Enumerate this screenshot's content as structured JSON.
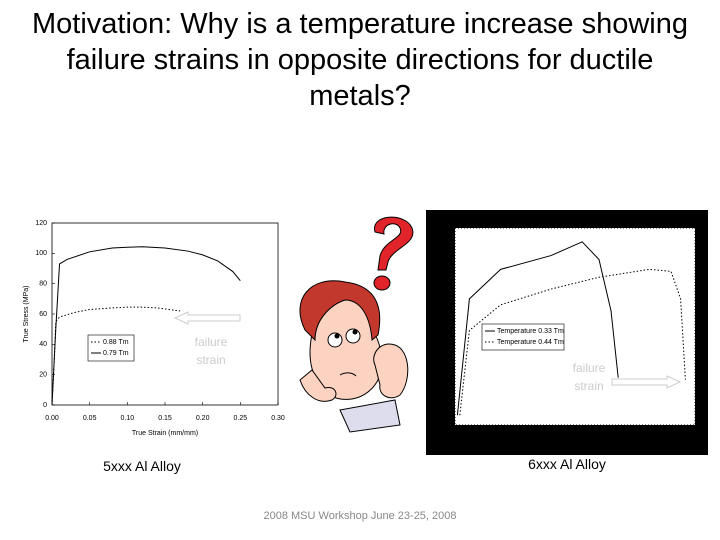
{
  "title": "Motivation: Why is a temperature increase showing failure strains in opposite directions for ductile metals?",
  "chart_data": [
    {
      "type": "line",
      "caption": "5xxx Al Alloy",
      "xlabel": "True Strain (mm/mm)",
      "ylabel": "True Stress (MPa)",
      "annotation": "failure strain",
      "xlim": [
        0,
        0.3
      ],
      "ylim": [
        0,
        120
      ],
      "xticks": [
        {
          "value": 0,
          "label": "0.00"
        },
        {
          "value": 0.05,
          "label": "0.05"
        },
        {
          "value": 0.1,
          "label": "0.10"
        },
        {
          "value": 0.15,
          "label": "0.15"
        },
        {
          "value": 0.2,
          "label": "0.20"
        },
        {
          "value": 0.25,
          "label": "0.25"
        },
        {
          "value": 0.3,
          "label": "0.30"
        }
      ],
      "yticks": [
        0,
        20,
        40,
        60,
        80,
        100,
        120
      ],
      "series": [
        {
          "name": "0.88 Tm",
          "color": "#000000",
          "dash": "dotted",
          "x": [
            0,
            0.003,
            0.005,
            0.01,
            0.03,
            0.05,
            0.08,
            0.1,
            0.12,
            0.14,
            0.17
          ],
          "values": [
            0,
            30,
            55,
            58,
            61,
            63,
            64,
            64.5,
            64.5,
            64,
            62
          ]
        },
        {
          "name": "0.79 Tm",
          "color": "#000000",
          "dash": "solid",
          "x": [
            0,
            0.005,
            0.01,
            0.02,
            0.05,
            0.08,
            0.1,
            0.12,
            0.15,
            0.18,
            0.2,
            0.22,
            0.24,
            0.25
          ],
          "values": [
            0,
            50,
            93,
            96,
            101,
            103.5,
            104,
            104.3,
            103.5,
            101.5,
            99,
            95,
            88,
            82
          ]
        }
      ]
    },
    {
      "type": "line",
      "caption": "6xxx Al Alloy",
      "annotation": "failure strain",
      "xlim": [
        0,
        100
      ],
      "ylim": [
        0,
        100
      ],
      "series": [
        {
          "name": "Temperature 0.33 Tm",
          "color": "#000000",
          "dash": "solid",
          "x": [
            1,
            6,
            19,
            40,
            53,
            60,
            65,
            68
          ],
          "values": [
            5,
            64,
            79,
            86,
            93,
            84,
            58,
            24
          ]
        },
        {
          "name": "Temperature 0.44 Tm",
          "color": "#000000",
          "dash": "dotted",
          "x": [
            2,
            6,
            19,
            40,
            60,
            81,
            90,
            94,
            96
          ],
          "values": [
            5,
            48,
            61,
            69,
            75,
            79,
            78,
            64,
            23
          ]
        }
      ]
    }
  ],
  "footer": "2008 MSU Workshop June 23-25, 2008"
}
